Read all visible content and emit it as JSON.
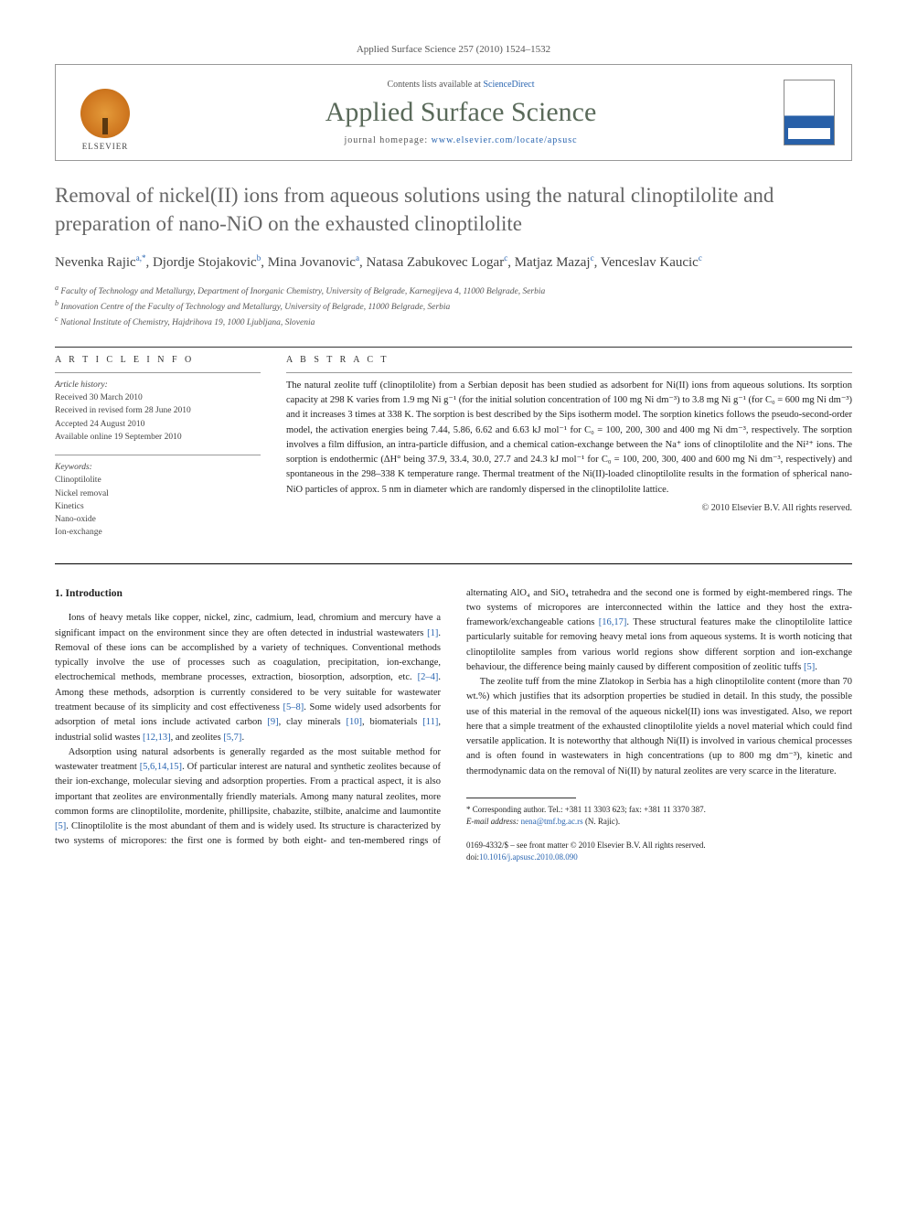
{
  "journal_ref": "Applied Surface Science 257 (2010) 1524–1532",
  "header": {
    "contents_prefix": "Contents lists available at ",
    "contents_link": "ScienceDirect",
    "journal_title": "Applied Surface Science",
    "homepage_prefix": "journal homepage: ",
    "homepage_link": "www.elsevier.com/locate/apsusc",
    "elsevier_label": "ELSEVIER",
    "cover_label": "applied surface science"
  },
  "title": "Removal of nickel(II) ions from aqueous solutions using the natural clinoptilolite and preparation of nano-NiO on the exhausted clinoptilolite",
  "authors_html": "Nevenka Rajic<span class='sup'>a,*</span>, Djordje Stojakovic<span class='sup'>b</span>, Mina Jovanovic<span class='sup'>a</span>, Natasa Zabukovec Logar<span class='sup'>c</span>, Matjaz Mazaj<span class='sup'>c</span>, Venceslav Kaucic<span class='sup'>c</span>",
  "affiliations": [
    "a Faculty of Technology and Metallurgy, Department of Inorganic Chemistry, University of Belgrade, Karnegijeva 4, 11000 Belgrade, Serbia",
    "b Innovation Centre of the Faculty of Technology and Metallurgy, University of Belgrade, 11000 Belgrade, Serbia",
    "c National Institute of Chemistry, Hajdrihova 19, 1000 Ljubljana, Slovenia"
  ],
  "article_info": {
    "heading": "A R T I C L E   I N F O",
    "history_label": "Article history:",
    "history": [
      "Received 30 March 2010",
      "Received in revised form 28 June 2010",
      "Accepted 24 August 2010",
      "Available online 19 September 2010"
    ],
    "keywords_label": "Keywords:",
    "keywords": [
      "Clinoptilolite",
      "Nickel removal",
      "Kinetics",
      "Nano-oxide",
      "Ion-exchange"
    ]
  },
  "abstract": {
    "heading": "A B S T R A C T",
    "text": "The natural zeolite tuff (clinoptilolite) from a Serbian deposit has been studied as adsorbent for Ni(II) ions from aqueous solutions. Its sorption capacity at 298 K varies from 1.9 mg Ni g⁻¹ (for the initial solution concentration of 100 mg Ni dm⁻³) to 3.8 mg Ni g⁻¹ (for C₀ = 600 mg Ni dm⁻³) and it increases 3 times at 338 K. The sorption is best described by the Sips isotherm model. The sorption kinetics follows the pseudo-second-order model, the activation energies being 7.44, 5.86, 6.62 and 6.63 kJ mol⁻¹ for C₀ = 100, 200, 300 and 400 mg Ni dm⁻³, respectively. The sorption involves a film diffusion, an intra-particle diffusion, and a chemical cation-exchange between the Na⁺ ions of clinoptilolite and the Ni²⁺ ions. The sorption is endothermic (ΔH° being 37.9, 33.4, 30.0, 27.7 and 24.3 kJ mol⁻¹ for C₀ = 100, 200, 300, 400 and 600 mg Ni dm⁻³, respectively) and spontaneous in the 298–338 K temperature range. Thermal treatment of the Ni(II)-loaded clinoptilolite results in the formation of spherical nano-NiO particles of approx. 5 nm in diameter which are randomly dispersed in the clinoptilolite lattice.",
    "copyright": "© 2010 Elsevier B.V. All rights reserved."
  },
  "body": {
    "section_heading": "1. Introduction",
    "para1": "Ions of heavy metals like copper, nickel, zinc, cadmium, lead, chromium and mercury have a significant impact on the environment since they are often detected in industrial wastewaters [1]. Removal of these ions can be accomplished by a variety of techniques. Conventional methods typically involve the use of processes such as coagulation, precipitation, ion-exchange, electrochemical methods, membrane processes, extraction, biosorption, adsorption, etc. [2–4]. Among these methods, adsorption is currently considered to be very suitable for wastewater treatment because of its simplicity and cost effectiveness [5–8]. Some widely used adsorbents for adsorption of metal ions include activated carbon [9], clay minerals [10], biomaterials [11], industrial solid wastes [12,13], and zeolites [5,7].",
    "para2": "Adsorption using natural adsorbents is generally regarded as the most suitable method for wastewater treatment [5,6,14,15]. Of particular interest are natural and synthetic zeolites because of their ion-exchange, molecular sieving and adsorption properties. From a practical aspect, it is also important that zeolites are environmentally friendly materials. Among many natural zeolites, more common forms are clinoptilolite, mordenite, phillipsite, chabazite, stilbite, analcime and laumontite [5]. Clinoptilolite is the most abundant of them and is widely used. Its structure is characterized by two systems of micropores: the first one is formed by both eight- and ten-membered rings of alternating AlO₄ and SiO₄ tetrahedra and the second one is formed by eight-membered rings. The two systems of micropores are interconnected within the lattice and they host the extra-framework/exchangeable cations [16,17]. These structural features make the clinoptilolite lattice particularly suitable for removing heavy metal ions from aqueous systems. It is worth noticing that clinoptilolite samples from various world regions show different sorption and ion-exchange behaviour, the difference being mainly caused by different composition of zeolitic tuffs [5].",
    "para3": "The zeolite tuff from the mine Zlatokop in Serbia has a high clinoptilolite content (more than 70 wt.%) which justifies that its adsorption properties be studied in detail. In this study, the possible use of this material in the removal of the aqueous nickel(II) ions was investigated. Also, we report here that a simple treatment of the exhausted clinoptilolite yields a novel material which could find versatile application. It is noteworthy that although Ni(II) is involved in various chemical processes and is often found in wastewaters in high concentrations (up to 800 mg dm⁻³), kinetic and thermodynamic data on the removal of Ni(II) by natural zeolites are very scarce in the literature."
  },
  "footnote": {
    "corr": "* Corresponding author. Tel.: +381 11 3303 623; fax: +381 11 3370 387.",
    "email_label": "E-mail address: ",
    "email": "nena@tmf.bg.ac.rs",
    "email_name": " (N. Rajic)."
  },
  "footer": {
    "line1": "0169-4332/$ – see front matter © 2010 Elsevier B.V. All rights reserved.",
    "doi_label": "doi:",
    "doi": "10.1016/j.apsusc.2010.08.090"
  },
  "colors": {
    "link": "#2864b0",
    "title_gray": "#666666",
    "journal_green": "#5a6a5a"
  }
}
